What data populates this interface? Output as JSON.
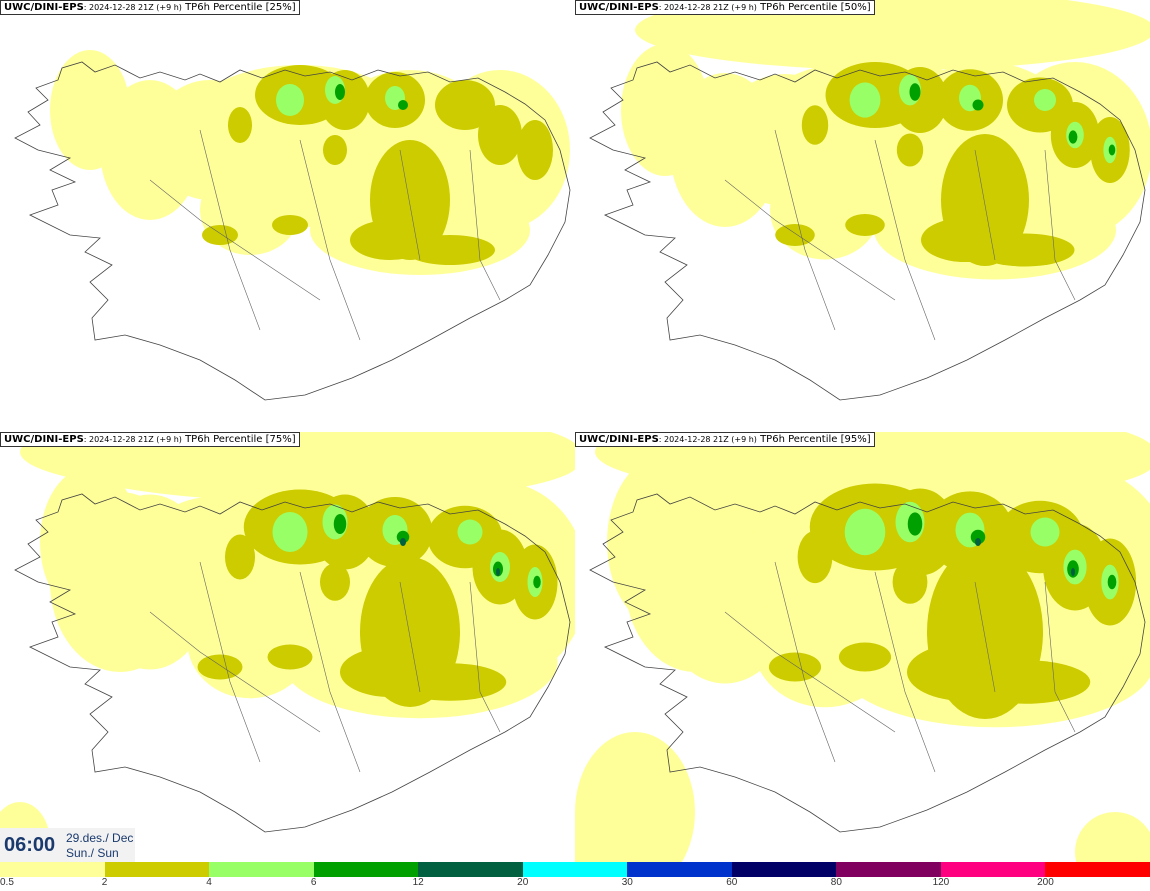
{
  "panels": [
    {
      "model": "UWC/DINI-EPS",
      "run": ": 2024-12-28 21Z (+9 h)",
      "product": " TP6h Percentile [25%]",
      "level": 1
    },
    {
      "model": "UWC/DINI-EPS",
      "run": ": 2024-12-28 21Z (+9 h)",
      "product": " TP6h Percentile [50%]",
      "level": 2
    },
    {
      "model": "UWC/DINI-EPS",
      "run": ": 2024-12-28 21Z (+9 h)",
      "product": " TP6h Percentile [75%]",
      "level": 3
    },
    {
      "model": "UWC/DINI-EPS",
      "run": ": 2024-12-28 21Z (+9 h)",
      "product": " TP6h Percentile [95%]",
      "level": 4
    }
  ],
  "valid_time": {
    "time": "06:00",
    "date_line1": "29.des./ Dec",
    "date_line2": "Sun./ Sun"
  },
  "colorbar": {
    "colors": [
      "#ffff99",
      "#cccc00",
      "#99ff66",
      "#00a000",
      "#006040",
      "#00ffff",
      "#0033cc",
      "#000066",
      "#800060",
      "#ff0080",
      "#ff0000"
    ],
    "labels": [
      "0.5",
      "2",
      "4",
      "6",
      "12",
      "20",
      "30",
      "60",
      "80",
      "120",
      "200"
    ]
  },
  "map_colors": {
    "ocean": "#ffffff",
    "coast": "#444444",
    "light_yellow": "#ffff99",
    "olive": "#cccc00",
    "light_green": "#99ff66",
    "green": "#00a000",
    "dark_green": "#006040"
  }
}
